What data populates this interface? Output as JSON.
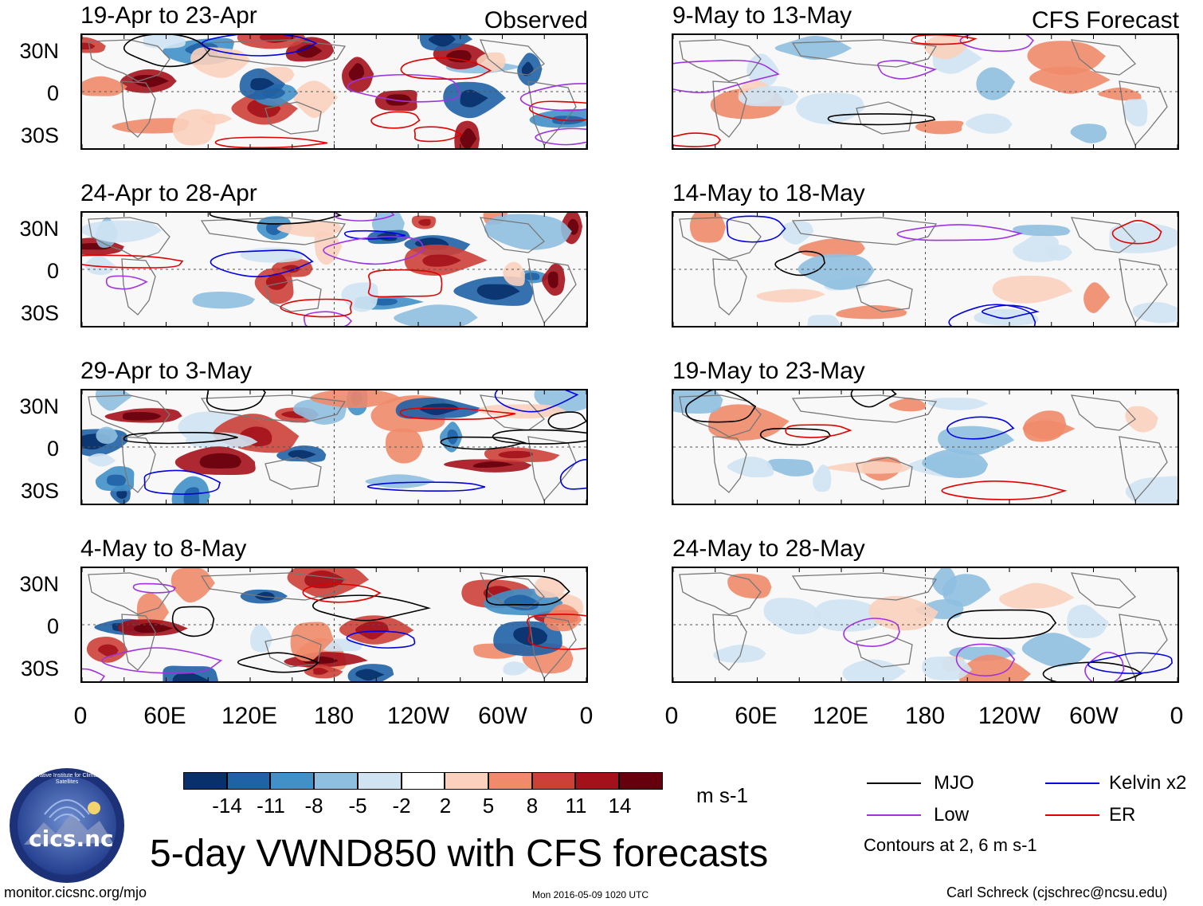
{
  "observed_label": "Observed",
  "forecast_label": "CFS Forecast",
  "observed_panels": [
    {
      "title": "19-Apr to 23-Apr"
    },
    {
      "title": "24-Apr to 28-Apr"
    },
    {
      "title": "29-Apr to 3-May"
    },
    {
      "title": "4-May to 8-May"
    }
  ],
  "forecast_panels": [
    {
      "title": "9-May to 13-May"
    },
    {
      "title": "14-May to 18-May"
    },
    {
      "title": "19-May to 23-May"
    },
    {
      "title": "24-May to 28-May"
    }
  ],
  "lat_labels": [
    "30N",
    "0",
    "30S"
  ],
  "lon_labels": [
    "0",
    "60E",
    "120E",
    "180",
    "120W",
    "60W",
    "0"
  ],
  "colorbar": {
    "colors": [
      "#08306b",
      "#1f62a6",
      "#4190c8",
      "#8ebfe0",
      "#cfe3f2",
      "#ffffff",
      "#fbd0bd",
      "#f08a6a",
      "#cc4038",
      "#a4111b",
      "#67000d"
    ],
    "ticks": [
      "-14",
      "-11",
      "-8",
      "-5",
      "-2",
      "2",
      "5",
      "8",
      "11",
      "14"
    ],
    "unit": "m s-1"
  },
  "legend": {
    "items": [
      {
        "label": "MJO",
        "color": "#000000"
      },
      {
        "label": "Kelvin x2",
        "color": "#0000e0"
      },
      {
        "label": "Low",
        "color": "#a033e0"
      },
      {
        "label": "ER",
        "color": "#e00000"
      }
    ],
    "note": "Contours at 2, 6 m s-1"
  },
  "title": "5-day VWND850 with CFS forecasts",
  "logo_text": "cics.nc",
  "logo_ring_text": "Cooperative Institute for Climate and Satellites",
  "footer": {
    "url": "monitor.cicsnc.org/mjo",
    "timestamp": "Mon 2016-05-09 1020 UTC",
    "author": "Carl Schreck (cjschrec@ncsu.edu)"
  }
}
